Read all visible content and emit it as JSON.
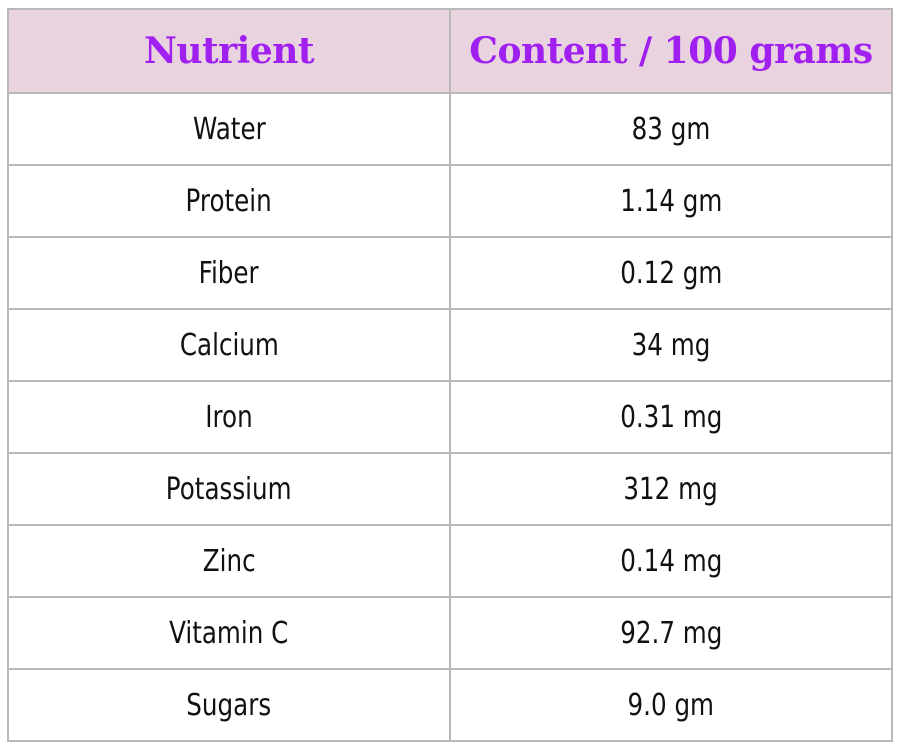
{
  "table": {
    "headers": [
      "Nutrient",
      "Content / 100 grams"
    ],
    "rows": [
      [
        "Water",
        "83 gm"
      ],
      [
        "Protein",
        "1.14 gm"
      ],
      [
        "Fiber",
        "0.12 gm"
      ],
      [
        "Calcium",
        "34 mg"
      ],
      [
        "Iron",
        "0.31 mg"
      ],
      [
        "Potassium",
        "312 mg"
      ],
      [
        "Zinc",
        "0.14 mg"
      ],
      [
        "Vitamin C",
        "92.7 mg"
      ],
      [
        "Sugars",
        "9.0 gm"
      ]
    ]
  },
  "colors": {
    "header_background": "#e9d3df",
    "header_text": "#a020f0",
    "border": "#b8b8b8",
    "body_text": "#111111"
  }
}
